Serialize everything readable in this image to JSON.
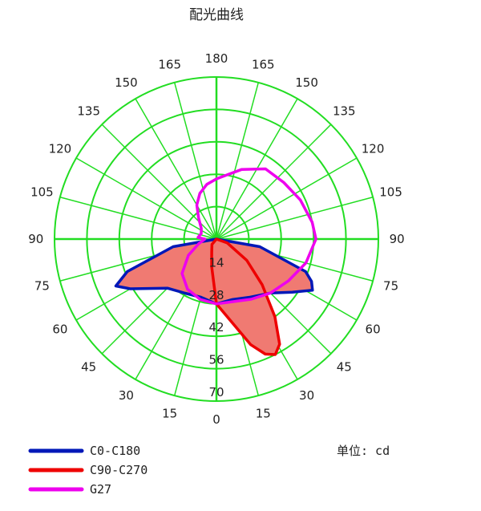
{
  "chart_data": {
    "type": "polar",
    "title": "配光曲线",
    "unit_label": "单位: cd",
    "angle_tick_labels": [
      "180",
      "165",
      "150",
      "135",
      "120",
      "105",
      "90",
      "75",
      "60",
      "45",
      "30",
      "15",
      "0",
      "15",
      "30",
      "45",
      "60",
      "75",
      "90",
      "105",
      "120",
      "135",
      "150",
      "165"
    ],
    "radial_ticks": [
      14,
      28,
      42,
      56,
      70
    ],
    "radial_tick_labels": [
      "14",
      "28",
      "42",
      "56",
      "70"
    ],
    "radial_max": 70,
    "grid": true,
    "legend_position": "bottom-left",
    "colors": {
      "grid": "#22dd22",
      "axis": "#22dd22",
      "c0_c180": "#0018b8",
      "c90_c270": "#ee0000",
      "g27": "#ee00ee",
      "fill": "#f07a72"
    },
    "series": [
      {
        "name": "C0-C180",
        "color": "#0018b8",
        "filled": true,
        "points": [
          {
            "angle": 0,
            "value": 28
          },
          {
            "angle": 15,
            "value": 27
          },
          {
            "angle": 30,
            "value": 29
          },
          {
            "angle": 45,
            "value": 33
          },
          {
            "angle": 55,
            "value": 40
          },
          {
            "angle": 62,
            "value": 47
          },
          {
            "angle": 66,
            "value": 45
          },
          {
            "angle": 70,
            "value": 41
          },
          {
            "angle": 80,
            "value": 19
          },
          {
            "angle": 90,
            "value": 0
          },
          {
            "angle": -90,
            "value": 0
          },
          {
            "angle": -80,
            "value": 19
          },
          {
            "angle": -70,
            "value": 41
          },
          {
            "angle": -65,
            "value": 48
          },
          {
            "angle": -60,
            "value": 43
          },
          {
            "angle": -45,
            "value": 30
          },
          {
            "angle": -30,
            "value": 27
          },
          {
            "angle": -15,
            "value": 26
          }
        ]
      },
      {
        "name": "C90-C270",
        "color": "#ee0000",
        "filled": true,
        "points": [
          {
            "angle": 0,
            "value": 28
          },
          {
            "angle": 10,
            "value": 36
          },
          {
            "angle": 18,
            "value": 48
          },
          {
            "angle": 23,
            "value": 54
          },
          {
            "angle": 27,
            "value": 56
          },
          {
            "angle": 31,
            "value": 53
          },
          {
            "angle": 37,
            "value": 42
          },
          {
            "angle": 45,
            "value": 28
          },
          {
            "angle": 55,
            "value": 16
          },
          {
            "angle": 70,
            "value": 5
          },
          {
            "angle": 90,
            "value": 0
          },
          {
            "angle": -90,
            "value": 0
          },
          {
            "angle": -40,
            "value": 3
          },
          {
            "angle": -20,
            "value": 6
          },
          {
            "angle": -10,
            "value": 12
          }
        ]
      },
      {
        "name": "G27",
        "color": "#ee00ee",
        "filled": false,
        "points": [
          {
            "angle": 0,
            "value": 28
          },
          {
            "angle": 15,
            "value": 28
          },
          {
            "angle": 30,
            "value": 30
          },
          {
            "angle": 45,
            "value": 33
          },
          {
            "angle": 60,
            "value": 36
          },
          {
            "angle": 75,
            "value": 40
          },
          {
            "angle": 90,
            "value": 43
          },
          {
            "angle": 100,
            "value": 42
          },
          {
            "angle": 105,
            "value": 41
          },
          {
            "angle": 115,
            "value": 40
          },
          {
            "angle": 130,
            "value": 38
          },
          {
            "angle": 145,
            "value": 37
          },
          {
            "angle": 160,
            "value": 32
          },
          {
            "angle": 175,
            "value": 27
          },
          {
            "angle": 180,
            "value": 26
          },
          {
            "angle": -170,
            "value": 24
          },
          {
            "angle": -160,
            "value": 21
          },
          {
            "angle": -150,
            "value": 17
          },
          {
            "angle": -140,
            "value": 12
          },
          {
            "angle": -125,
            "value": 8
          },
          {
            "angle": -110,
            "value": 7
          },
          {
            "angle": -95,
            "value": 8
          },
          {
            "angle": -90,
            "value": 5
          },
          {
            "angle": -75,
            "value": 8
          },
          {
            "angle": -60,
            "value": 14
          },
          {
            "angle": -45,
            "value": 21
          },
          {
            "angle": -30,
            "value": 25
          },
          {
            "angle": -15,
            "value": 27
          }
        ]
      }
    ]
  }
}
